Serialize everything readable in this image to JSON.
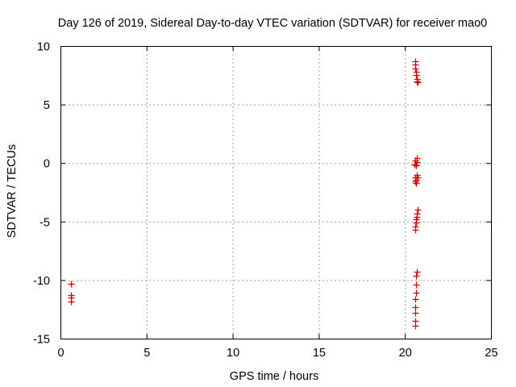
{
  "chart_data": {
    "type": "scatter",
    "title": "Day 126 of 2019, Sidereal Day-to-day VTEC variation (SDTVAR) for receiver mao0",
    "xlabel": "GPS time / hours",
    "ylabel": "SDTVAR / TECUs",
    "xlim": [
      0,
      25
    ],
    "ylim": [
      -15,
      10
    ],
    "xticks": [
      0,
      5,
      10,
      15,
      20,
      25
    ],
    "yticks": [
      -15,
      -10,
      -5,
      0,
      5,
      10
    ],
    "grid": true,
    "marker": "plus",
    "series": [
      {
        "name": "SDTVAR",
        "color": "#dd0000",
        "points": [
          [
            0.6,
            -10.3
          ],
          [
            0.6,
            -11.3
          ],
          [
            0.6,
            -11.5
          ],
          [
            0.6,
            -11.8
          ],
          [
            20.6,
            8.7
          ],
          [
            20.6,
            8.4
          ],
          [
            20.6,
            8.1
          ],
          [
            20.65,
            7.8
          ],
          [
            20.65,
            7.5
          ],
          [
            20.7,
            7.2
          ],
          [
            20.7,
            7.0
          ],
          [
            20.75,
            6.9
          ],
          [
            20.7,
            0.4
          ],
          [
            20.6,
            0.2
          ],
          [
            20.7,
            0.1
          ],
          [
            20.55,
            -0.1
          ],
          [
            20.65,
            -0.2
          ],
          [
            20.7,
            -1.0
          ],
          [
            20.6,
            -1.2
          ],
          [
            20.75,
            -1.2
          ],
          [
            20.65,
            -1.4
          ],
          [
            20.6,
            -1.6
          ],
          [
            20.65,
            -1.7
          ],
          [
            20.75,
            -4.0
          ],
          [
            20.7,
            -4.3
          ],
          [
            20.7,
            -4.6
          ],
          [
            20.65,
            -4.8
          ],
          [
            20.65,
            -5.1
          ],
          [
            20.6,
            -5.4
          ],
          [
            20.6,
            -5.7
          ],
          [
            20.7,
            -9.3
          ],
          [
            20.65,
            -9.6
          ],
          [
            20.65,
            -10.4
          ],
          [
            20.65,
            -11.1
          ],
          [
            20.6,
            -11.6
          ],
          [
            20.6,
            -12.3
          ],
          [
            20.6,
            -12.8
          ],
          [
            20.6,
            -13.5
          ],
          [
            20.6,
            -13.9
          ]
        ]
      }
    ]
  }
}
